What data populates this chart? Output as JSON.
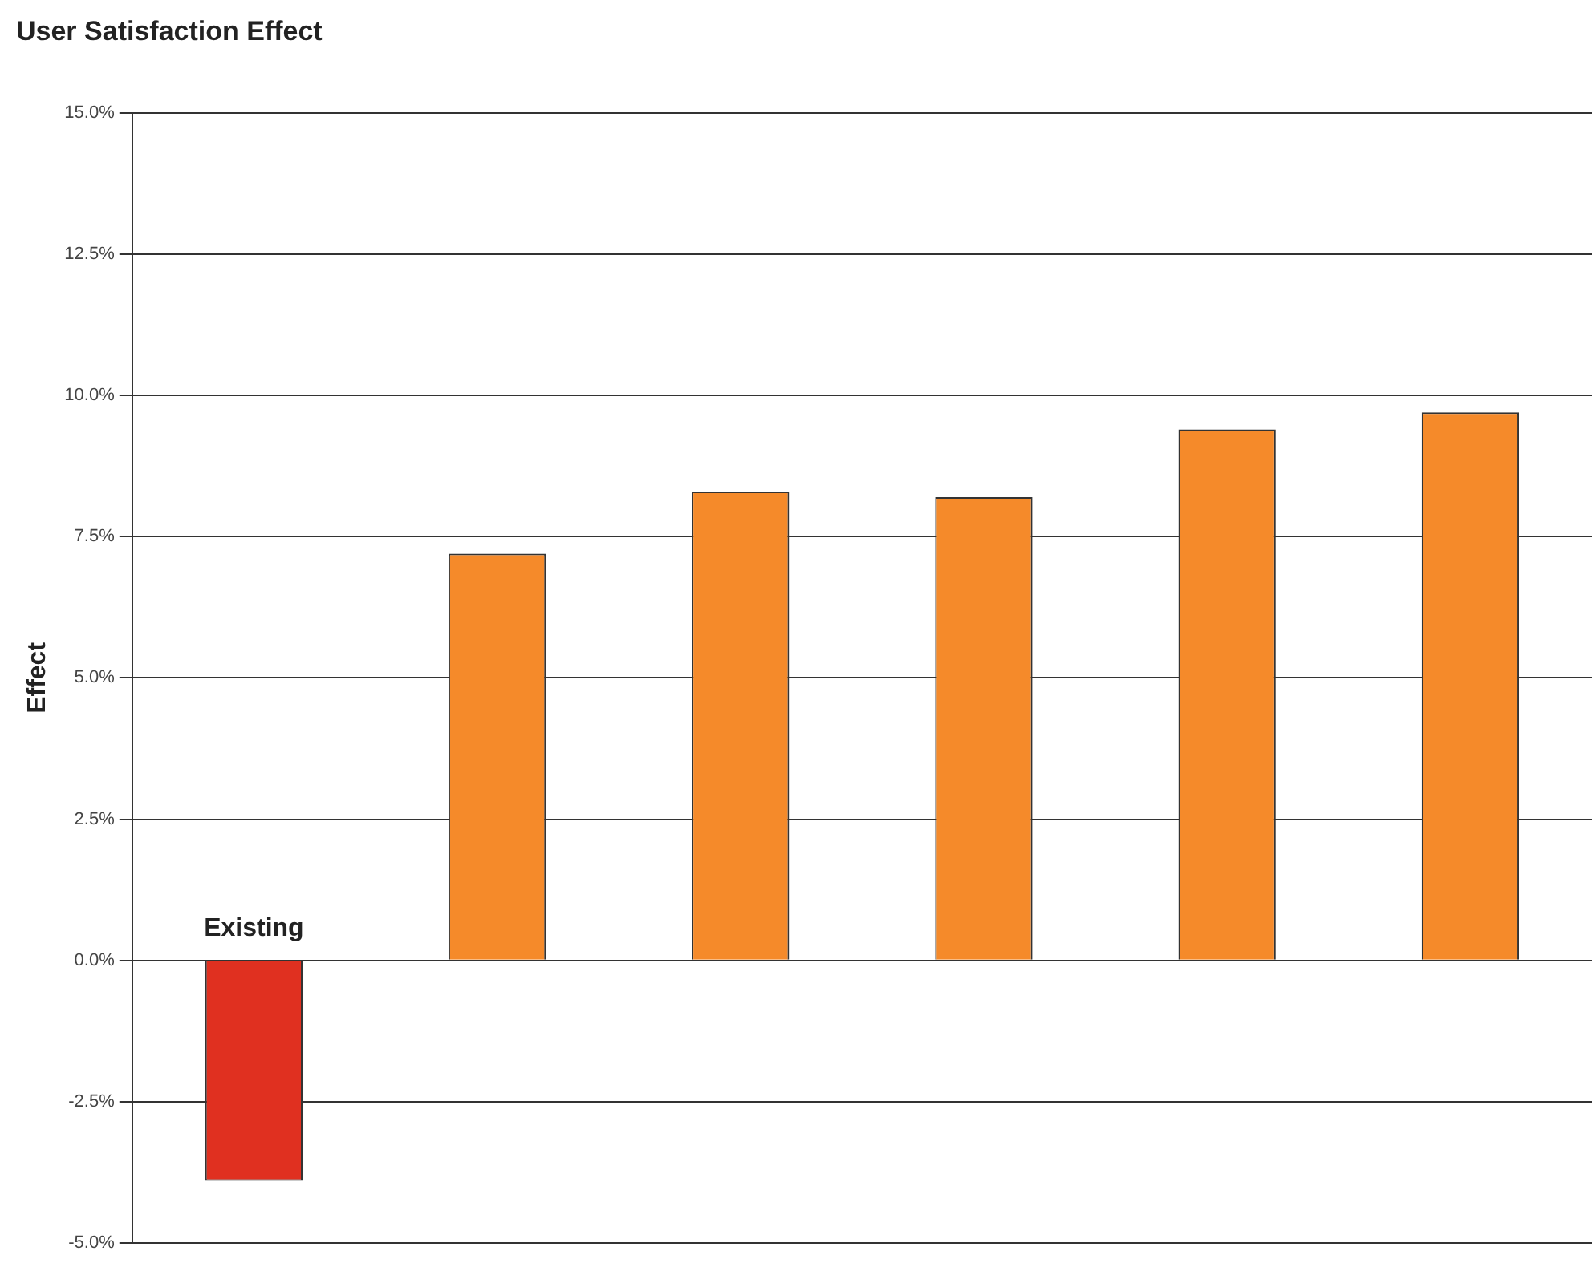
{
  "chart_data": {
    "type": "bar",
    "title": "User Satisfaction Effect",
    "ylabel": "Effect",
    "categories": [
      "Existing",
      null,
      null,
      null,
      null,
      null
    ],
    "values": [
      -3.9,
      7.2,
      8.3,
      8.2,
      9.4,
      9.7
    ],
    "colors": [
      "#e03020",
      "#f58a2a",
      "#f58a2a",
      "#f58a2a",
      "#f58a2a",
      "#f58a2a"
    ],
    "ylim": [
      -5,
      15
    ],
    "yticks": [
      {
        "value": -5,
        "label": "-5.0%"
      },
      {
        "value": -2.5,
        "label": "-2.5%"
      },
      {
        "value": 0,
        "label": "0.0%"
      },
      {
        "value": 2.5,
        "label": "2.5%"
      },
      {
        "value": 5,
        "label": "5.0%"
      },
      {
        "value": 7.5,
        "label": "7.5%"
      },
      {
        "value": 10,
        "label": "10.0%"
      },
      {
        "value": 12.5,
        "label": "12.5%"
      },
      {
        "value": 15,
        "label": "15.0%"
      }
    ],
    "grid": "y",
    "legend": false
  }
}
